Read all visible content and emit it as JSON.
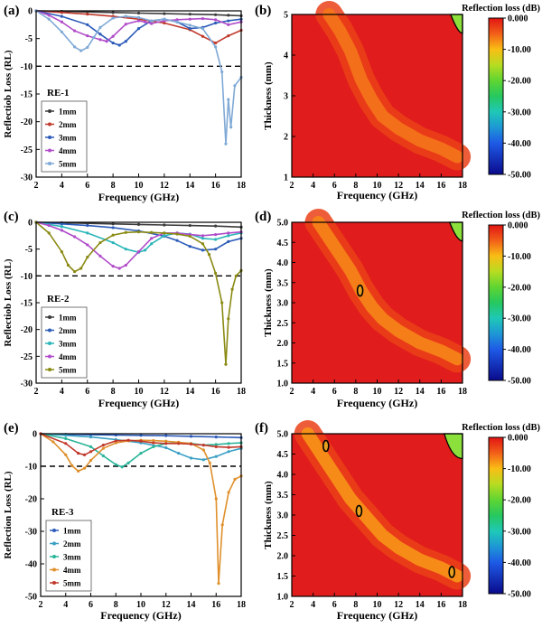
{
  "figure": {
    "colorbar_title": "Reflection loss (dB)",
    "colors": {
      "1mm": "#3a3a3a",
      "2mm": "#c0392b",
      "3mm": "#2c5bb8",
      "4mm": "#b04cc9",
      "5mm": "#7fa9d6"
    }
  },
  "chart_data": [
    {
      "panel": "(a)",
      "type": "line",
      "sample": "RE-1",
      "xlabel": "Frequency (GHz)",
      "ylabel": "Reflectiob Loss (RL)",
      "xlim": [
        2,
        18
      ],
      "ylim": [
        -30,
        0
      ],
      "xticks": [
        2,
        4,
        6,
        8,
        10,
        12,
        14,
        16,
        18
      ],
      "yticks": [
        0,
        -5,
        -10,
        -15,
        -20,
        -25,
        -30
      ],
      "reference_line": -10,
      "legend": "lower-left",
      "series": [
        {
          "name": "1mm",
          "color": "#3a3a3a",
          "x": [
            2,
            4,
            6,
            8,
            10,
            12,
            14,
            16,
            17,
            18
          ],
          "y": [
            0,
            -0.1,
            -0.2,
            -0.3,
            -0.4,
            -0.5,
            -0.6,
            -0.7,
            -0.8,
            -0.9
          ]
        },
        {
          "name": "2mm",
          "color": "#c0392b",
          "x": [
            2,
            4,
            6,
            8,
            10,
            12,
            14,
            15,
            16,
            17,
            18
          ],
          "y": [
            0,
            -0.3,
            -0.6,
            -1.0,
            -1.5,
            -2.2,
            -3.4,
            -4.6,
            -5.8,
            -4.5,
            -3.5
          ]
        },
        {
          "name": "3mm",
          "color": "#2c5bb8",
          "x": [
            2,
            4,
            6,
            7,
            8,
            8.5,
            9,
            10,
            11,
            12,
            13,
            14,
            15,
            16,
            17,
            18
          ],
          "y": [
            0,
            -1.0,
            -2.5,
            -4.2,
            -5.8,
            -6.2,
            -5.5,
            -3.2,
            -1.8,
            -1.5,
            -2.0,
            -3.2,
            -3.0,
            -2.2,
            -1.8,
            -1.5
          ]
        },
        {
          "name": "4mm",
          "color": "#b04cc9",
          "x": [
            2,
            3,
            4,
            5,
            6,
            7,
            7.5,
            8,
            9,
            10,
            10.5,
            11,
            12,
            13,
            14,
            15,
            16,
            17,
            18
          ],
          "y": [
            0,
            -0.8,
            -2.0,
            -3.6,
            -4.5,
            -5.2,
            -5.5,
            -4.6,
            -2.4,
            -1.8,
            -2.0,
            -2.3,
            -1.8,
            -1.6,
            -1.5,
            -1.4,
            -1.6,
            -2.5,
            -2.0
          ]
        },
        {
          "name": "5mm",
          "color": "#7fa9d6",
          "x": [
            2,
            3,
            4,
            5,
            5.5,
            6,
            6.5,
            7,
            8,
            9,
            10,
            11,
            12,
            13,
            14,
            15,
            16,
            16.5,
            16.8,
            17,
            17.2,
            17.5,
            18
          ],
          "y": [
            0,
            -1.5,
            -3.8,
            -6.5,
            -7.2,
            -6.6,
            -4.8,
            -3.0,
            -1.3,
            -1.0,
            -1.2,
            -1.8,
            -1.5,
            -2.0,
            -2.6,
            -3.2,
            -6.5,
            -11.0,
            -24.0,
            -16.0,
            -21.0,
            -13.5,
            -12.0
          ]
        }
      ]
    },
    {
      "panel": "(b)",
      "type": "heatmap",
      "sample": "RE-1",
      "xlabel": "Frequency (GHz)",
      "ylabel": "Thickness (mm)",
      "xlim": [
        2,
        18
      ],
      "ylim": [
        1,
        5
      ],
      "xticks": [
        2,
        4,
        6,
        8,
        10,
        12,
        14,
        16,
        18
      ],
      "yticks": [
        1,
        2,
        3,
        4,
        5
      ],
      "colorbar": {
        "title": "Reflection loss (dB)",
        "ticks": [
          "0.000",
          "-10.00",
          "-20.00",
          "-30.00",
          "-40.00",
          "-50.00"
        ],
        "range": [
          -50,
          0
        ]
      },
      "features": [
        {
          "kind": "ridge",
          "x": [
            5.5,
            6.5,
            7.5,
            8.5,
            9.5,
            10.5,
            12,
            14,
            16,
            17.5
          ],
          "thickness": [
            5.0,
            4.6,
            4.1,
            3.4,
            2.9,
            2.5,
            2.2,
            1.9,
            1.7,
            1.5
          ],
          "rl_min": -8
        },
        {
          "kind": "contour",
          "level": -10,
          "x": 17.4,
          "thickness": 4.85
        }
      ]
    },
    {
      "panel": "(c)",
      "type": "line",
      "sample": "RE-2",
      "xlabel": "Frequency (GHz)",
      "ylabel": "Reflectiob Loss (RL)",
      "xlim": [
        2,
        18
      ],
      "ylim": [
        -30,
        0
      ],
      "xticks": [
        2,
        4,
        6,
        8,
        10,
        12,
        14,
        16,
        18
      ],
      "yticks": [
        0,
        -5,
        -10,
        -15,
        -20,
        -25,
        -30
      ],
      "reference_line": -10,
      "legend": "lower-left",
      "series": [
        {
          "name": "1mm",
          "color": "#3a3a3a",
          "x": [
            2,
            4,
            6,
            8,
            10,
            12,
            14,
            16,
            18
          ],
          "y": [
            0,
            -0.1,
            -0.2,
            -0.3,
            -0.4,
            -0.5,
            -0.6,
            -0.7,
            -0.9
          ]
        },
        {
          "name": "2mm",
          "color": "#2c5bb8",
          "x": [
            2,
            4,
            6,
            8,
            10,
            12,
            13,
            14,
            15,
            16,
            17,
            18
          ],
          "y": [
            0,
            -0.3,
            -0.6,
            -1.0,
            -1.6,
            -2.6,
            -3.4,
            -4.5,
            -5.2,
            -5.0,
            -3.6,
            -3.0
          ]
        },
        {
          "name": "3mm",
          "color": "#2bb5b8",
          "x": [
            2,
            4,
            6,
            8,
            9,
            10,
            10.5,
            11,
            12,
            13,
            14,
            15,
            16,
            17,
            18
          ],
          "y": [
            0,
            -0.8,
            -2.0,
            -3.8,
            -5.0,
            -5.6,
            -5.2,
            -4.0,
            -2.5,
            -2.0,
            -2.2,
            -3.0,
            -3.2,
            -2.5,
            -2.0
          ]
        },
        {
          "name": "4mm",
          "color": "#b04cc9",
          "x": [
            2,
            3,
            4,
            5,
            6,
            7,
            8,
            8.5,
            9,
            10,
            11,
            12,
            13,
            14,
            15,
            16,
            17,
            18
          ],
          "y": [
            0,
            -0.6,
            -1.5,
            -2.7,
            -4.2,
            -6.3,
            -8.2,
            -8.6,
            -8.0,
            -5.5,
            -3.0,
            -2.0,
            -2.0,
            -2.3,
            -2.5,
            -2.3,
            -2.0,
            -1.8
          ]
        },
        {
          "name": "5mm",
          "color": "#8a8a14",
          "x": [
            2,
            3,
            4,
            4.5,
            5,
            5.5,
            6,
            7,
            8,
            9,
            10,
            11,
            12,
            13,
            14,
            15,
            15.5,
            16,
            16.5,
            16.8,
            17,
            17.3,
            17.6,
            18
          ],
          "y": [
            0,
            -2.0,
            -5.5,
            -8.0,
            -9.2,
            -8.6,
            -6.5,
            -3.8,
            -2.4,
            -1.9,
            -1.8,
            -1.9,
            -2.0,
            -2.2,
            -2.6,
            -4.0,
            -6.0,
            -9.5,
            -15.0,
            -26.5,
            -18.0,
            -12.5,
            -10.0,
            -9.0
          ]
        }
      ]
    },
    {
      "panel": "(d)",
      "type": "heatmap",
      "sample": "RE-2",
      "xlabel": "Frequency (GHz)",
      "ylabel": "Thickness (mm)",
      "xlim": [
        2,
        18
      ],
      "ylim": [
        1.0,
        5.0
      ],
      "xticks": [
        2,
        4,
        6,
        8,
        10,
        12,
        14,
        16,
        18
      ],
      "yticks": [
        "1.0",
        "1.5",
        "2.0",
        "2.5",
        "3.0",
        "3.5",
        "4.0",
        "4.5",
        "5.0"
      ],
      "colorbar": {
        "title": "Reflection loss (dB)",
        "ticks": [
          "0.000",
          "-10.00",
          "-20.00",
          "-30.00",
          "-40.00",
          "-50.00"
        ],
        "range": [
          -50,
          0
        ]
      },
      "features": [
        {
          "kind": "ridge",
          "x": [
            4.5,
            5.5,
            6.5,
            7.5,
            8.5,
            9.5,
            10.5,
            12,
            14,
            16,
            17.5
          ],
          "thickness": [
            5.0,
            4.6,
            4.2,
            3.8,
            3.3,
            2.9,
            2.6,
            2.3,
            2.0,
            1.8,
            1.6
          ],
          "rl_min": -9
        },
        {
          "kind": "contour",
          "level": -10,
          "x": 8.4,
          "thickness": 3.3
        },
        {
          "kind": "contour",
          "level": -10,
          "x": 17.3,
          "thickness": 4.85
        }
      ]
    },
    {
      "panel": "(e)",
      "type": "line",
      "sample": "RE-3",
      "xlabel": "Frequency (GHz)",
      "ylabel": "Reflection Loss (RL)",
      "xlim": [
        2,
        18
      ],
      "ylim": [
        -50,
        0
      ],
      "xticks": [
        2,
        4,
        6,
        8,
        10,
        12,
        14,
        16,
        18
      ],
      "yticks": [
        0,
        -10,
        -20,
        -30,
        -40,
        -50
      ],
      "reference_line": -10,
      "legend": "lower-left",
      "series": [
        {
          "name": "1mm",
          "color": "#2c5bb8",
          "x": [
            2,
            4,
            6,
            8,
            10,
            12,
            14,
            16,
            18
          ],
          "y": [
            0,
            -0.2,
            -0.3,
            -0.4,
            -0.5,
            -0.6,
            -0.8,
            -1.0,
            -1.2
          ]
        },
        {
          "name": "2mm",
          "color": "#3aa0c4",
          "x": [
            2,
            4,
            6,
            8,
            10,
            12,
            13,
            14,
            15,
            16,
            17,
            18
          ],
          "y": [
            0,
            -0.5,
            -1.0,
            -1.8,
            -2.8,
            -4.3,
            -6.0,
            -7.5,
            -8.0,
            -7.0,
            -5.5,
            -4.5
          ]
        },
        {
          "name": "3mm",
          "color": "#2bb59a",
          "x": [
            2,
            4,
            6,
            7,
            8,
            8.5,
            9,
            10,
            11,
            12,
            13,
            14,
            15,
            16,
            17,
            18
          ],
          "y": [
            0,
            -1.5,
            -4.0,
            -6.8,
            -9.5,
            -10.2,
            -9.0,
            -6.0,
            -4.0,
            -3.0,
            -2.8,
            -3.0,
            -3.5,
            -3.3,
            -3.0,
            -2.8
          ]
        },
        {
          "name": "4mm",
          "color": "#e0902c",
          "x": [
            2,
            3,
            4,
            4.5,
            5,
            5.5,
            6,
            7,
            8,
            9,
            10,
            11,
            12,
            13,
            14,
            15,
            15.5,
            16,
            16.2,
            16.5,
            17,
            17.5,
            18
          ],
          "y": [
            0,
            -2.5,
            -6.5,
            -9.8,
            -11.5,
            -10.6,
            -8.2,
            -4.5,
            -2.8,
            -2.2,
            -2.0,
            -2.1,
            -2.3,
            -2.6,
            -3.0,
            -5.0,
            -9.0,
            -20.0,
            -46.0,
            -28.0,
            -18.0,
            -14.0,
            -13.0
          ]
        },
        {
          "name": "5mm",
          "color": "#c0392b",
          "x": [
            2,
            4,
            5,
            5.5,
            6,
            7,
            8,
            9,
            10,
            11,
            12,
            13,
            14,
            15,
            16,
            17,
            18
          ],
          "y": [
            0,
            -3.0,
            -6.0,
            -6.5,
            -5.5,
            -3.5,
            -2.2,
            -2.0,
            -2.3,
            -2.8,
            -3.0,
            -3.0,
            -3.2,
            -3.5,
            -4.0,
            -4.2,
            -4.0
          ]
        }
      ]
    },
    {
      "panel": "(f)",
      "type": "heatmap",
      "sample": "RE-3",
      "xlabel": "Frequency (GHz)",
      "ylabel": "Thickness (mm)",
      "xlim": [
        2,
        18
      ],
      "ylim": [
        1.0,
        5.0
      ],
      "xticks": [
        2,
        4,
        6,
        8,
        10,
        12,
        14,
        16,
        18
      ],
      "yticks": [
        "1.0",
        "1.5",
        "2.0",
        "2.5",
        "3.0",
        "3.5",
        "4.0",
        "4.5",
        "5.0"
      ],
      "colorbar": {
        "title": "Reflection loss (dB)",
        "ticks": [
          "0.000",
          "-10.00",
          "-20.00",
          "-30.00",
          "-40.00",
          "-50.00"
        ],
        "range": [
          -50,
          0
        ]
      },
      "features": [
        {
          "kind": "ridge",
          "x": [
            3.5,
            4.5,
            5.5,
            6.5,
            7.5,
            8.5,
            9.5,
            10.5,
            12,
            14,
            16,
            17.5
          ],
          "thickness": [
            5.0,
            4.6,
            4.2,
            3.8,
            3.4,
            3.1,
            2.8,
            2.5,
            2.2,
            1.9,
            1.7,
            1.5
          ],
          "rl_min": -10
        },
        {
          "kind": "contour",
          "level": -10,
          "x": 5.2,
          "thickness": 4.7
        },
        {
          "kind": "contour",
          "level": -10,
          "x": 8.3,
          "thickness": 3.1
        },
        {
          "kind": "contour",
          "level": -10,
          "x": 17.0,
          "thickness": 1.6
        },
        {
          "kind": "contour",
          "level": -10,
          "x": 16.8,
          "thickness": 4.7
        }
      ]
    }
  ]
}
